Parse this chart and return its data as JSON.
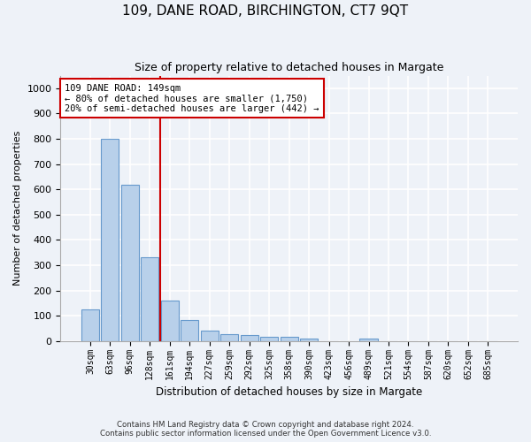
{
  "title1": "109, DANE ROAD, BIRCHINGTON, CT7 9QT",
  "title2": "Size of property relative to detached houses in Margate",
  "xlabel": "Distribution of detached houses by size in Margate",
  "ylabel": "Number of detached properties",
  "categories": [
    "30sqm",
    "63sqm",
    "96sqm",
    "128sqm",
    "161sqm",
    "194sqm",
    "227sqm",
    "259sqm",
    "292sqm",
    "325sqm",
    "358sqm",
    "390sqm",
    "423sqm",
    "456sqm",
    "489sqm",
    "521sqm",
    "554sqm",
    "587sqm",
    "620sqm",
    "652sqm",
    "685sqm"
  ],
  "values": [
    125,
    800,
    620,
    330,
    160,
    82,
    40,
    28,
    25,
    18,
    15,
    8,
    0,
    0,
    10,
    0,
    0,
    0,
    0,
    0,
    0
  ],
  "bar_color": "#b8d0ea",
  "bar_edge_color": "#6699cc",
  "vline_index": 4,
  "vline_color": "#cc0000",
  "annotation_text": "109 DANE ROAD: 149sqm\n← 80% of detached houses are smaller (1,750)\n20% of semi-detached houses are larger (442) →",
  "annotation_box_color": "#ffffff",
  "annotation_box_edge": "#cc0000",
  "ylim": [
    0,
    1050
  ],
  "yticks": [
    0,
    100,
    200,
    300,
    400,
    500,
    600,
    700,
    800,
    900,
    1000
  ],
  "footer1": "Contains HM Land Registry data © Crown copyright and database right 2024.",
  "footer2": "Contains public sector information licensed under the Open Government Licence v3.0.",
  "bg_color": "#eef2f8",
  "plot_bg_color": "#eef2f8"
}
